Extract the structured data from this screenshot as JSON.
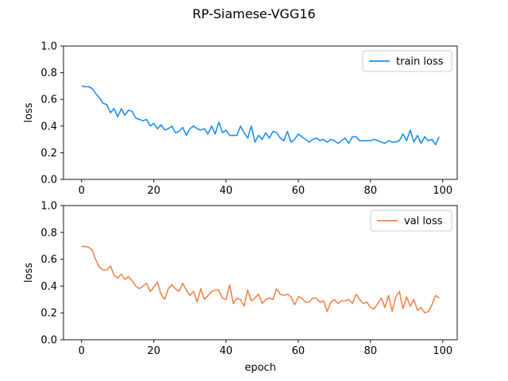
{
  "figure": {
    "title": "RP-Siamese-VGG16"
  },
  "chart_data": [
    {
      "type": "line",
      "title": "",
      "xlabel": "",
      "ylabel": "loss",
      "xlim": [
        -5,
        104
      ],
      "ylim": [
        0.0,
        1.0
      ],
      "xticks": [
        0,
        20,
        40,
        60,
        80,
        100
      ],
      "yticks": [
        0.0,
        0.2,
        0.4,
        0.6,
        0.8,
        1.0
      ],
      "grid": false,
      "legend_position": "top-right",
      "series": [
        {
          "name": "train loss",
          "color": "#1f8ff0",
          "x": [
            0,
            1,
            2,
            3,
            4,
            5,
            6,
            7,
            8,
            9,
            10,
            11,
            12,
            13,
            14,
            15,
            16,
            17,
            18,
            19,
            20,
            21,
            22,
            23,
            24,
            25,
            26,
            27,
            28,
            29,
            30,
            31,
            32,
            33,
            34,
            35,
            36,
            37,
            38,
            39,
            40,
            41,
            42,
            43,
            44,
            45,
            46,
            47,
            48,
            49,
            50,
            51,
            52,
            53,
            54,
            55,
            56,
            57,
            58,
            59,
            60,
            61,
            62,
            63,
            64,
            65,
            66,
            67,
            68,
            69,
            70,
            71,
            72,
            73,
            74,
            75,
            76,
            77,
            78,
            79,
            80,
            81,
            82,
            83,
            84,
            85,
            86,
            87,
            88,
            89,
            90,
            91,
            92,
            93,
            94,
            95,
            96,
            97,
            98,
            99
          ],
          "y": [
            0.7,
            0.695,
            0.695,
            0.68,
            0.64,
            0.61,
            0.57,
            0.56,
            0.5,
            0.53,
            0.47,
            0.53,
            0.48,
            0.52,
            0.51,
            0.46,
            0.45,
            0.44,
            0.45,
            0.4,
            0.42,
            0.38,
            0.41,
            0.37,
            0.38,
            0.4,
            0.35,
            0.36,
            0.39,
            0.33,
            0.38,
            0.4,
            0.38,
            0.37,
            0.38,
            0.34,
            0.4,
            0.34,
            0.43,
            0.35,
            0.37,
            0.33,
            0.33,
            0.33,
            0.4,
            0.35,
            0.31,
            0.4,
            0.28,
            0.33,
            0.3,
            0.35,
            0.31,
            0.36,
            0.35,
            0.31,
            0.29,
            0.36,
            0.28,
            0.3,
            0.34,
            0.32,
            0.3,
            0.28,
            0.3,
            0.31,
            0.29,
            0.3,
            0.28,
            0.3,
            0.29,
            0.27,
            0.29,
            0.31,
            0.27,
            0.32,
            0.32,
            0.29,
            0.29,
            0.29,
            0.29,
            0.3,
            0.29,
            0.28,
            0.27,
            0.29,
            0.28,
            0.28,
            0.29,
            0.34,
            0.29,
            0.37,
            0.28,
            0.33,
            0.27,
            0.32,
            0.29,
            0.3,
            0.26,
            0.32
          ]
        }
      ]
    },
    {
      "type": "line",
      "title": "",
      "xlabel": "epoch",
      "ylabel": "loss",
      "xlim": [
        -5,
        104
      ],
      "ylim": [
        0.0,
        1.0
      ],
      "xticks": [
        0,
        20,
        40,
        60,
        80,
        100
      ],
      "yticks": [
        0.0,
        0.2,
        0.4,
        0.6,
        0.8,
        1.0
      ],
      "grid": false,
      "legend_position": "top-right",
      "series": [
        {
          "name": "val loss",
          "color": "#f5844c",
          "x": [
            0,
            1,
            2,
            3,
            4,
            5,
            6,
            7,
            8,
            9,
            10,
            11,
            12,
            13,
            14,
            15,
            16,
            17,
            18,
            19,
            20,
            21,
            22,
            23,
            24,
            25,
            26,
            27,
            28,
            29,
            30,
            31,
            32,
            33,
            34,
            35,
            36,
            37,
            38,
            39,
            40,
            41,
            42,
            43,
            44,
            45,
            46,
            47,
            48,
            49,
            50,
            51,
            52,
            53,
            54,
            55,
            56,
            57,
            58,
            59,
            60,
            61,
            62,
            63,
            64,
            65,
            66,
            67,
            68,
            69,
            70,
            71,
            72,
            73,
            74,
            75,
            76,
            77,
            78,
            79,
            80,
            81,
            82,
            83,
            84,
            85,
            86,
            87,
            88,
            89,
            90,
            91,
            92,
            93,
            94,
            95,
            96,
            97,
            98,
            99
          ],
          "y": [
            0.695,
            0.695,
            0.69,
            0.665,
            0.59,
            0.54,
            0.52,
            0.52,
            0.55,
            0.48,
            0.46,
            0.49,
            0.45,
            0.47,
            0.44,
            0.4,
            0.38,
            0.4,
            0.42,
            0.36,
            0.39,
            0.43,
            0.34,
            0.3,
            0.38,
            0.41,
            0.38,
            0.36,
            0.42,
            0.37,
            0.33,
            0.36,
            0.28,
            0.38,
            0.3,
            0.33,
            0.36,
            0.37,
            0.37,
            0.31,
            0.3,
            0.41,
            0.27,
            0.31,
            0.3,
            0.25,
            0.37,
            0.29,
            0.31,
            0.34,
            0.27,
            0.3,
            0.31,
            0.3,
            0.38,
            0.34,
            0.33,
            0.34,
            0.32,
            0.26,
            0.32,
            0.31,
            0.28,
            0.28,
            0.31,
            0.31,
            0.28,
            0.29,
            0.21,
            0.28,
            0.3,
            0.27,
            0.29,
            0.29,
            0.3,
            0.27,
            0.34,
            0.3,
            0.27,
            0.28,
            0.24,
            0.23,
            0.27,
            0.31,
            0.24,
            0.33,
            0.21,
            0.32,
            0.36,
            0.23,
            0.32,
            0.25,
            0.3,
            0.22,
            0.24,
            0.2,
            0.21,
            0.26,
            0.33,
            0.31
          ]
        }
      ]
    }
  ]
}
